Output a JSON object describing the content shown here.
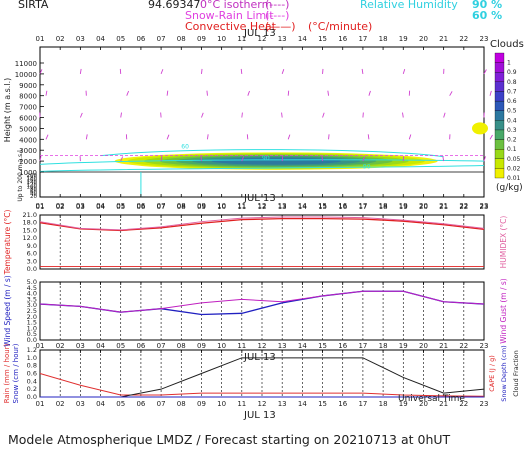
{
  "header": {
    "station": "SIRTA",
    "coords": "94.69347",
    "legend_isotherm": "0°C isotherm",
    "legend_snow_rain": "Snow-Rain Limit",
    "legend_conv_heat": "Convective Heat",
    "legend_conv_unit": "(°C/minute)",
    "legend_dash": "(----)",
    "legend_solid": "(——)",
    "rh_label": "Relative Humidity",
    "rh_90": "90 %",
    "rh_60": "60 %"
  },
  "date_label": "JUL 13",
  "footer": "Modele Atmospherique LMDZ / Forecast starting on 20210713 at 0hUT",
  "universal_time_label": "Universal Time",
  "colors": {
    "temperature": "#e02020",
    "humidex": "#e060a0",
    "wind_speed": "#2020c0",
    "wind_gust": "#c020c0",
    "rain": "#e03030",
    "snow": "#2020c0",
    "cloud_fraction": "#202020",
    "rh_contour": "#30e0e0",
    "zero_isotherm": "#e040e0"
  },
  "chart_data": [
    {
      "type": "heatmap",
      "title": "Clouds",
      "ylabel": "Height (m a.s.l.)",
      "ylabel2": "Up to 200 m a.s.l.",
      "x": [
        "01",
        "02",
        "03",
        "04",
        "05",
        "06",
        "07",
        "08",
        "09",
        "10",
        "11",
        "12",
        "13",
        "14",
        "15",
        "16",
        "17",
        "18",
        "19",
        "20",
        "21",
        "22",
        "23"
      ],
      "yticks_upper": [
        "11000",
        "10000",
        "9000",
        "8000",
        "7000",
        "6000",
        "5000",
        "4000",
        "3000",
        "2000",
        "1000"
      ],
      "yticks_lower": [
        "200",
        "180",
        "160",
        "140",
        "120",
        "100",
        "80",
        "60",
        "40",
        "20"
      ],
      "colorbar_unit": "(g/kg)",
      "colorbar_levels": [
        "0.01",
        "0.02",
        "0.05",
        "0.1",
        "0.2",
        "0.3",
        "0.4",
        "0.5",
        "0.6",
        "0.7",
        "0.8",
        "0.9",
        "1"
      ],
      "colorbar_colors": [
        "#f0f000",
        "#c8e800",
        "#98d818",
        "#6cc040",
        "#48a868",
        "#389088",
        "#2c78a0",
        "#2c58b8",
        "#3c40c8",
        "#5c30d0",
        "#8020d8",
        "#a010d8",
        "#c000e0"
      ],
      "isotherm_height_m": 2500,
      "cloud_layer": {
        "base_m": 1200,
        "top_m": 2800,
        "start_hour": 5,
        "end_hour": 21
      },
      "rh_contour_labels": [
        "90",
        "60"
      ]
    },
    {
      "type": "line",
      "ylabel": "Temperature (°C)",
      "ylabel2": "HUMIDEX (°C)",
      "ylim": [
        0,
        21
      ],
      "yticks": [
        "0.0",
        "3.0",
        "6.0",
        "9.0",
        "12.0",
        "15.0",
        "18.0",
        "21.0"
      ],
      "x": [
        1,
        3,
        5,
        7,
        9,
        11,
        13,
        15,
        17,
        19,
        21,
        23
      ],
      "series": [
        {
          "name": "Temperature",
          "values": [
            18.0,
            15.6,
            15.0,
            16.0,
            17.8,
            19.2,
            19.6,
            19.6,
            19.4,
            18.6,
            17.2,
            15.4
          ]
        },
        {
          "name": "HUMIDEX",
          "values": [
            18.4,
            15.8,
            15.2,
            16.4,
            18.4,
            19.8,
            20.2,
            20.2,
            20.0,
            19.0,
            17.6,
            15.8
          ]
        }
      ]
    },
    {
      "type": "line",
      "ylabel": "Wind Speed (m / s)",
      "ylabel2": "Wind Gust (m / s)",
      "ylim": [
        0,
        5
      ],
      "yticks": [
        "0.0",
        "0.5",
        "1.0",
        "1.5",
        "2.0",
        "2.5",
        "3.0",
        "3.5",
        "4.0",
        "4.5",
        "5.0"
      ],
      "x": [
        1,
        3,
        5,
        7,
        9,
        11,
        13,
        15,
        17,
        19,
        21,
        23
      ],
      "series": [
        {
          "name": "Wind Speed",
          "values": [
            3.1,
            2.9,
            2.4,
            2.7,
            2.2,
            2.3,
            3.2,
            3.8,
            4.2,
            4.2,
            3.3,
            3.1
          ]
        },
        {
          "name": "Wind Gust",
          "values": [
            3.1,
            2.9,
            2.4,
            2.7,
            3.2,
            3.5,
            3.3,
            3.8,
            4.2,
            4.2,
            3.3,
            3.1
          ]
        }
      ]
    },
    {
      "type": "line",
      "ylabel": "Rain (mm / hour)",
      "ylabel2": "Snow (cm / hour)",
      "ylabel_r1": "CAPE (J / g)",
      "ylabel_r2": "Snow Depth (cm)",
      "ylabel_r3": "Cloud Fraction",
      "ylim": [
        0,
        1.2
      ],
      "yticks": [
        "0.0",
        "0.2",
        "0.4",
        "0.6",
        "0.8",
        "1.0",
        "1.2"
      ],
      "x": [
        1,
        3,
        5,
        7,
        9,
        11,
        13,
        15,
        17,
        19,
        21,
        23
      ],
      "series": [
        {
          "name": "Rain",
          "values": [
            0.6,
            0.3,
            0.05,
            0.05,
            0.1,
            0.1,
            0.1,
            0.1,
            0.1,
            0.05,
            0.03,
            0.02
          ]
        },
        {
          "name": "Cloud Fraction",
          "values": [
            0.0,
            0.0,
            0.0,
            0.2,
            0.6,
            1.0,
            1.0,
            1.0,
            1.0,
            0.5,
            0.1,
            0.2
          ]
        }
      ]
    }
  ]
}
